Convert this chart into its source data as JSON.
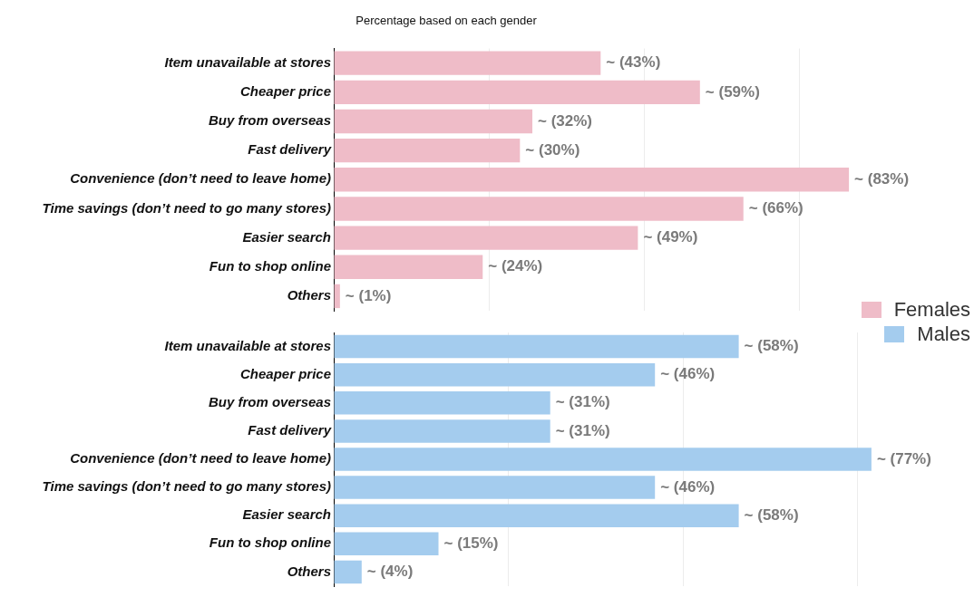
{
  "chart_data": [
    {
      "type": "bar",
      "orientation": "horizontal",
      "title": "Percentage based on each gender",
      "categories": [
        "Item unavailable at stores",
        "Cheaper price",
        "Buy from overseas",
        "Fast delivery",
        "Convenience (don’t need to leave home)",
        "Time savings (don’t need to go many stores)",
        "Easier search",
        "Fun to shop online",
        "Others"
      ],
      "series": [
        {
          "name": "Females",
          "color": "#efbcc8",
          "values": [
            43,
            59,
            32,
            30,
            83,
            66,
            49,
            24,
            1
          ],
          "value_labels": [
            "~ (43%)",
            "~ (59%)",
            "~ (32%)",
            "~ (30%)",
            "~ (83%)",
            "~ (66%)",
            "~ (49%)",
            "~ (24%)",
            "~ (1%)"
          ]
        }
      ],
      "xticks": [
        {
          "value": 0,
          "label": null
        },
        {
          "value": 25,
          "label": null
        },
        {
          "value": 50,
          "label": null
        },
        {
          "value": 75,
          "label": null
        }
      ],
      "grid": "x",
      "tick_labels": "y",
      "legend": "bottom right"
    },
    {
      "type": "bar",
      "orientation": "horizontal",
      "categories": [
        "Item unavailable at stores",
        "Cheaper price",
        "Buy from overseas",
        "Fast delivery",
        "Convenience (don’t need to leave home)",
        "Time savings (don’t need to go many stores)",
        "Easier search",
        "Fun to shop online",
        "Others"
      ],
      "series": [
        {
          "name": "Males",
          "color": "#a4ccee",
          "values": [
            58,
            46,
            31,
            31,
            77,
            46,
            58,
            15,
            4
          ],
          "value_labels": [
            "~ (58%)",
            "~ (46%)",
            "~ (31%)",
            "~ (31%)",
            "~ (77%)",
            "~ (46%)",
            "~ (58%)",
            "~ (15%)",
            "~ (4%)"
          ]
        }
      ],
      "xticks": [
        {
          "value": 0,
          "label": null
        },
        {
          "value": 25,
          "label": null
        },
        {
          "value": 50,
          "label": null
        },
        {
          "value": 75,
          "label": null
        }
      ],
      "grid": "x",
      "tick_labels": "y",
      "legend": "top right"
    }
  ]
}
